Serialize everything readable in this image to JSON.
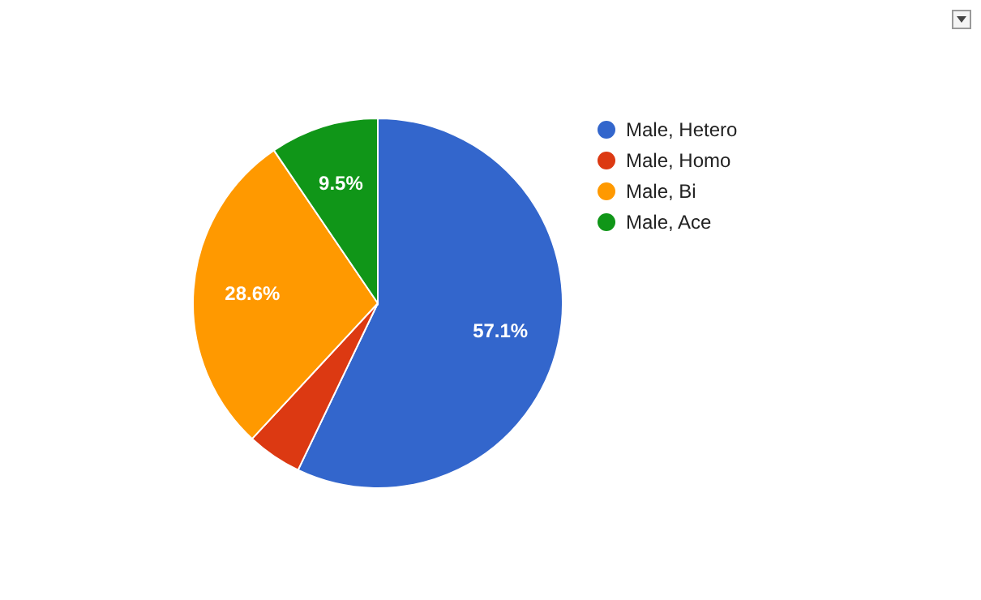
{
  "chart_data": {
    "type": "pie",
    "categories": [
      "Male, Hetero",
      "Male, Homo",
      "Male, Bi",
      "Male, Ace"
    ],
    "values": [
      57.1,
      4.8,
      28.6,
      9.5
    ],
    "colors": [
      "#3366cc",
      "#dc3912",
      "#ff9900",
      "#109618"
    ],
    "value_labels": [
      "57.1%",
      null,
      "28.6%",
      "9.5%"
    ],
    "legend": "top right"
  }
}
